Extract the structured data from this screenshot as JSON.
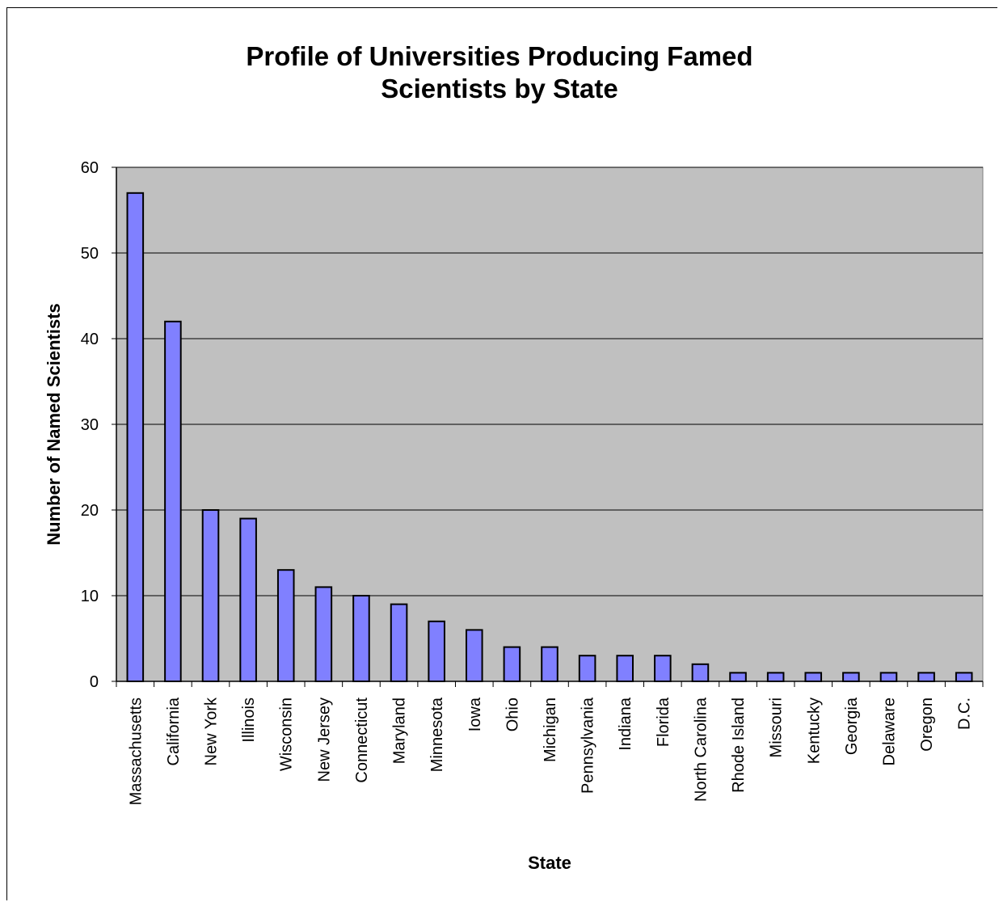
{
  "chart_data": {
    "type": "bar",
    "title_lines": [
      "Profile of Universities Producing Famed",
      "Scientists by State"
    ],
    "title": "Profile of Universities Producing Famed Scientists by State",
    "xlabel": "State",
    "ylabel": "Number of Named Scientists",
    "categories": [
      "Massachusetts",
      "California",
      "New York",
      "Illinois",
      "Wisconsin",
      "New Jersey",
      "Connecticut",
      "Maryland",
      "Minnesota",
      "Iowa",
      "Ohio",
      "Michigan",
      "Pennsylvania",
      "Indiana",
      "Florida",
      "North Carolina",
      "Rhode Island",
      "Missouri",
      "Kentucky",
      "Georgia",
      "Delaware",
      "Oregon",
      "D.C."
    ],
    "values": [
      57,
      42,
      20,
      19,
      13,
      11,
      10,
      9,
      7,
      6,
      4,
      4,
      3,
      3,
      3,
      2,
      1,
      1,
      1,
      1,
      1,
      1,
      1
    ],
    "ylim": [
      0,
      60
    ],
    "yticks": [
      0,
      10,
      20,
      30,
      40,
      50,
      60
    ],
    "grid": true,
    "legend": "none",
    "colors": {
      "bar": "#8080ff",
      "plot_bg": "#c0c0c0",
      "bar_edge": "#000000"
    }
  }
}
